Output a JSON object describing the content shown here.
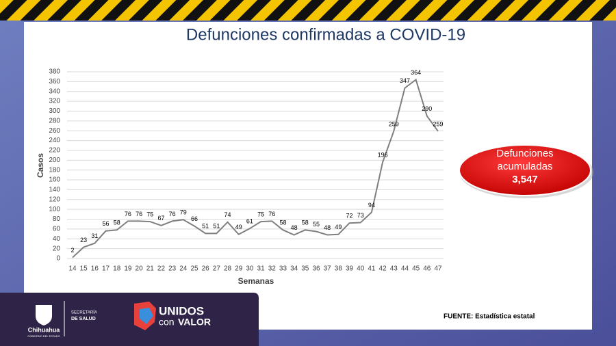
{
  "chart_data": {
    "type": "line",
    "title": "Defunciones confirmadas a COVID-19",
    "x_label": "Semanas",
    "y_label": "Casos",
    "categories": [
      "14",
      "15",
      "16",
      "17",
      "18",
      "19",
      "20",
      "21",
      "22",
      "23",
      "24",
      "25",
      "26",
      "27",
      "28",
      "29",
      "30",
      "31",
      "32",
      "33",
      "34",
      "35",
      "36",
      "37",
      "38",
      "39",
      "40",
      "41",
      "42",
      "43",
      "44",
      "45",
      "46",
      "47"
    ],
    "values": [
      2,
      23,
      31,
      56,
      58,
      76,
      76,
      75,
      67,
      76,
      79,
      66,
      51,
      51,
      74,
      49,
      61,
      75,
      76,
      58,
      48,
      58,
      55,
      48,
      49,
      72,
      73,
      94,
      196,
      259,
      347,
      364,
      290,
      259
    ],
    "color": "#7f7f7f",
    "ylim": [
      0,
      380
    ],
    "yticks": [
      0,
      20,
      40,
      60,
      80,
      100,
      120,
      140,
      160,
      180,
      200,
      220,
      240,
      260,
      280,
      300,
      320,
      340,
      360,
      380
    ],
    "grid": true
  },
  "callout": {
    "label": "Defunciones acumuladas",
    "value": "3,547"
  },
  "source": "FUENTE: Estadística estatal",
  "logos": {
    "state": "Chihuahua",
    "state_sub": "GOBIERNO DEL ESTADO",
    "secretaria": "SECRETARÍA",
    "salud": "DE SALUD",
    "unidos": "UNIDOS",
    "valor": "VALOR",
    "con": "con"
  }
}
